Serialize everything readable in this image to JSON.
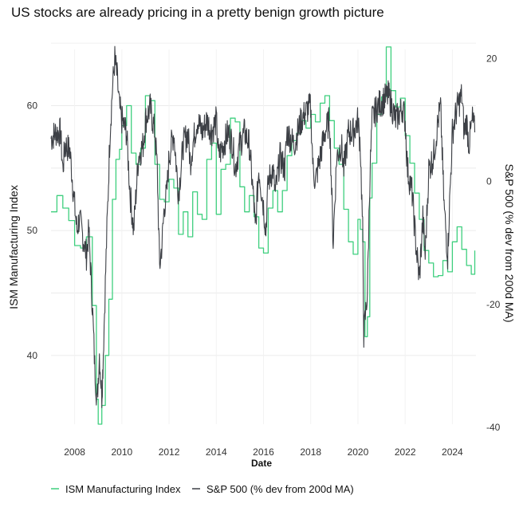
{
  "title": "US stocks are already pricing in a pretty benign growth picture",
  "chart_data": {
    "type": "line",
    "title": "US stocks are already pricing in a pretty benign growth picture",
    "xlabel": "Date",
    "ylabel_left": "ISM Manufacturing Index",
    "ylabel_right": "S&P 500 (% dev from 200d MA)",
    "xlim": [
      2007.0,
      2025.0
    ],
    "ylim_left": [
      34.5,
      64.5
    ],
    "ylim_right": [
      -39.5,
      21.5
    ],
    "x_ticks": [
      2008,
      2010,
      2012,
      2014,
      2016,
      2018,
      2020,
      2022,
      2024
    ],
    "x_tick_labels": [
      "2008",
      "2010",
      "2012",
      "2014",
      "2016",
      "2018",
      "2020",
      "2022",
      "2024"
    ],
    "y_left_ticks": [
      40,
      50,
      60
    ],
    "y_left_tick_labels": [
      "40",
      "50",
      "60"
    ],
    "y_right_ticks": [
      -40,
      -20,
      0,
      20
    ],
    "y_right_tick_labels": [
      "-40",
      "-20",
      "0",
      "20"
    ],
    "grid": true,
    "legend_position": "bottom",
    "series": [
      {
        "name": "ISM Manufacturing Index",
        "axis": "left",
        "color": "#3ecf7e",
        "style": "step",
        "x": [
          2007.0,
          2007.25,
          2007.5,
          2007.75,
          2008.0,
          2008.25,
          2008.5,
          2008.75,
          2008.92,
          2009.0,
          2009.15,
          2009.3,
          2009.45,
          2009.6,
          2009.75,
          2009.9,
          2010.0,
          2010.2,
          2010.4,
          2010.6,
          2010.8,
          2011.0,
          2011.2,
          2011.4,
          2011.6,
          2011.8,
          2012.0,
          2012.2,
          2012.4,
          2012.6,
          2012.8,
          2013.0,
          2013.2,
          2013.4,
          2013.6,
          2013.8,
          2014.0,
          2014.2,
          2014.4,
          2014.6,
          2014.8,
          2015.0,
          2015.2,
          2015.4,
          2015.6,
          2015.8,
          2016.0,
          2016.2,
          2016.4,
          2016.6,
          2016.8,
          2017.0,
          2017.2,
          2017.4,
          2017.6,
          2017.8,
          2018.0,
          2018.2,
          2018.4,
          2018.6,
          2018.8,
          2019.0,
          2019.2,
          2019.4,
          2019.6,
          2019.8,
          2020.0,
          2020.1,
          2020.2,
          2020.3,
          2020.4,
          2020.5,
          2020.6,
          2020.8,
          2021.0,
          2021.2,
          2021.4,
          2021.6,
          2021.8,
          2022.0,
          2022.2,
          2022.4,
          2022.6,
          2022.8,
          2023.0,
          2023.2,
          2023.4,
          2023.6,
          2023.8,
          2024.0,
          2024.2,
          2024.4,
          2024.6,
          2024.8,
          2024.95
        ],
        "y": [
          51.5,
          52.8,
          51.8,
          50.8,
          48.8,
          48.6,
          49.5,
          44.0,
          36.5,
          34.5,
          36.0,
          40.0,
          44.5,
          52.5,
          55.7,
          56.5,
          58.4,
          60.0,
          56.2,
          55.3,
          56.6,
          60.8,
          60.4,
          55.3,
          52.5,
          52.3,
          54.1,
          53.4,
          49.7,
          51.5,
          49.5,
          53.1,
          51.3,
          50.9,
          55.7,
          57.0,
          51.3,
          54.9,
          55.3,
          59.0,
          58.7,
          53.5,
          51.5,
          52.8,
          51.1,
          48.6,
          48.2,
          51.8,
          53.2,
          51.5,
          53.2,
          56.0,
          57.2,
          57.8,
          58.8,
          58.2,
          59.3,
          58.7,
          60.2,
          60.8,
          58.8,
          56.6,
          55.3,
          51.7,
          49.1,
          48.1,
          50.9,
          50.1,
          49.1,
          41.5,
          43.1,
          52.6,
          55.4,
          59.3,
          60.7,
          64.7,
          61.2,
          59.9,
          60.6,
          57.6,
          55.4,
          53.0,
          50.9,
          48.4,
          47.4,
          46.3,
          46.4,
          47.6,
          46.7,
          49.1,
          50.3,
          48.5,
          47.2,
          46.5,
          48.4
        ]
      },
      {
        "name": "S&P 500 (% dev from 200d MA)",
        "axis": "right",
        "color": "#3c3f45",
        "style": "line",
        "x": [
          2007.0,
          2007.2,
          2007.4,
          2007.5,
          2007.6,
          2007.8,
          2008.0,
          2008.1,
          2008.2,
          2008.4,
          2008.5,
          2008.6,
          2008.75,
          2008.85,
          2008.95,
          2009.05,
          2009.15,
          2009.2,
          2009.35,
          2009.5,
          2009.6,
          2009.7,
          2009.8,
          2009.9,
          2010.0,
          2010.2,
          2010.35,
          2010.5,
          2010.7,
          2010.9,
          2011.0,
          2011.2,
          2011.4,
          2011.5,
          2011.6,
          2011.7,
          2011.8,
          2011.9,
          2012.0,
          2012.2,
          2012.4,
          2012.6,
          2012.8,
          2012.9,
          2013.0,
          2013.2,
          2013.4,
          2013.6,
          2013.8,
          2014.0,
          2014.1,
          2014.3,
          2014.5,
          2014.7,
          2014.8,
          2015.0,
          2015.2,
          2015.4,
          2015.6,
          2015.65,
          2015.8,
          2016.0,
          2016.1,
          2016.2,
          2016.4,
          2016.5,
          2016.7,
          2016.9,
          2017.0,
          2017.3,
          2017.6,
          2017.9,
          2018.0,
          2018.1,
          2018.2,
          2018.4,
          2018.6,
          2018.8,
          2018.95,
          2019.1,
          2019.3,
          2019.4,
          2019.6,
          2019.8,
          2020.0,
          2020.1,
          2020.2,
          2020.25,
          2020.4,
          2020.5,
          2020.6,
          2020.8,
          2021.0,
          2021.3,
          2021.6,
          2021.9,
          2022.0,
          2022.1,
          2022.3,
          2022.45,
          2022.6,
          2022.75,
          2022.85,
          2023.0,
          2023.2,
          2023.4,
          2023.5,
          2023.65,
          2023.8,
          2023.9,
          2024.0,
          2024.2,
          2024.4,
          2024.5,
          2024.6,
          2024.7,
          2024.85,
          2024.95
        ],
        "y": [
          7,
          8,
          8,
          2,
          6,
          5,
          -4,
          -8,
          -6,
          -10,
          -12,
          -8,
          -20,
          -30,
          -36,
          -28,
          -35,
          -30,
          -10,
          8,
          15,
          20,
          17,
          12,
          10,
          8,
          -2,
          -8,
          4,
          6,
          10,
          12,
          8,
          2,
          -14,
          -10,
          -4,
          -2,
          4,
          8,
          -2,
          6,
          8,
          3,
          6,
          10,
          8,
          10,
          8,
          10,
          4,
          6,
          8,
          6,
          2,
          6,
          8,
          6,
          -4,
          -8,
          2,
          -4,
          -8,
          0,
          2,
          -2,
          4,
          2,
          8,
          6,
          10,
          12,
          12,
          2,
          0,
          4,
          8,
          10,
          -10,
          4,
          6,
          2,
          8,
          8,
          10,
          6,
          -8,
          -25,
          -18,
          0,
          10,
          12,
          13,
          14,
          10,
          12,
          10,
          2,
          -2,
          -10,
          -16,
          -6,
          -12,
          2,
          4,
          10,
          12,
          -4,
          -12,
          -2,
          8,
          12,
          14,
          8,
          10,
          6,
          10,
          8
        ]
      }
    ]
  },
  "legend": {
    "items": [
      {
        "label": "ISM Manufacturing Index",
        "color": "#3ecf7e"
      },
      {
        "label": "S&P 500 (% dev from 200d MA)",
        "color": "#3c3f45"
      }
    ]
  }
}
